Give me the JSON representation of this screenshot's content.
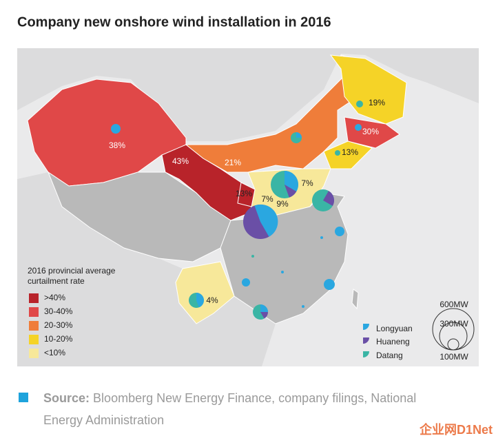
{
  "title": "Company new onshore wind installation in 2016",
  "map": {
    "labels": [
      "38%",
      "43%",
      "21%",
      "19%",
      "30%",
      "13%",
      "13%",
      "7%",
      "7%",
      "9%",
      "4%"
    ]
  },
  "legend": {
    "title": [
      "2016 provincial average",
      "curtailment rate"
    ],
    "items": [
      {
        "label": ">40%",
        "color": "#b8232a"
      },
      {
        "label": "30-40%",
        "color": "#e04848"
      },
      {
        "label": "20-30%",
        "color": "#ef7d3a"
      },
      {
        "label": "10-20%",
        "color": "#f5d327"
      },
      {
        "label": "<10%",
        "color": "#f7e89a"
      }
    ]
  },
  "companies": [
    {
      "name": "Longyuan",
      "color": "#2aa7e0"
    },
    {
      "name": "Huaneng",
      "color": "#6a4fa6"
    },
    {
      "name": "Datang",
      "color": "#3ab5a5"
    }
  ],
  "size_legend": [
    "600MW",
    "300MW",
    "100MW"
  ],
  "source": {
    "label": "Source:",
    "text": "Bloomberg New Energy Finance, company filings, National",
    "text2": "Energy Administration"
  },
  "watermark": "企业网D1Net"
}
